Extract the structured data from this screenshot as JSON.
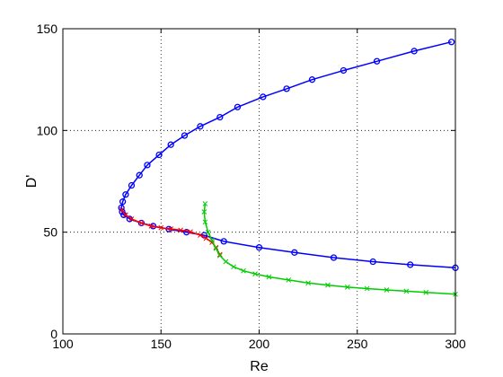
{
  "chart_data": {
    "type": "line",
    "title": "",
    "xlabel": "Re",
    "ylabel": "D'",
    "xlim": [
      100,
      300
    ],
    "ylim": [
      0,
      150
    ],
    "xticks": [
      100,
      150,
      200,
      250,
      300
    ],
    "yticks": [
      0,
      50,
      100,
      150
    ],
    "grid": true,
    "series": [
      {
        "color": "#0000ff",
        "marker": "circle",
        "x": [
          298,
          279,
          260,
          243,
          227,
          214,
          202,
          189,
          180,
          170,
          162,
          155,
          149,
          143,
          139,
          135,
          132,
          130.5,
          129.8,
          130.2,
          131,
          134,
          140,
          146,
          154,
          163,
          172,
          182,
          200,
          218,
          238,
          258,
          277,
          300
        ],
        "y": [
          143.5,
          139,
          134,
          129.5,
          125,
          120.5,
          116.5,
          111.5,
          106.5,
          102,
          97.5,
          93,
          88,
          83,
          78,
          73,
          68.5,
          65,
          62,
          60,
          58.5,
          56.5,
          54.5,
          53,
          51.5,
          50,
          48.5,
          45.5,
          42.5,
          40,
          37.5,
          35.5,
          34,
          32.5
        ]
      },
      {
        "color": "#ff0000",
        "marker": "x",
        "x": [
          130,
          132,
          135,
          140,
          145,
          150,
          155,
          160,
          165,
          170,
          173,
          176,
          178,
          180
        ],
        "y": [
          61,
          58.5,
          56.5,
          54.5,
          53,
          52.2,
          51.6,
          51,
          50.2,
          48.5,
          47,
          45,
          42.5,
          39
        ]
      },
      {
        "color": "#00cc00",
        "marker": "x",
        "x": [
          172.5,
          172,
          172.5,
          174,
          176,
          178,
          180,
          183,
          187,
          192,
          198,
          205,
          215,
          225,
          235,
          245,
          255,
          265,
          275,
          285,
          300
        ],
        "y": [
          64,
          60,
          55,
          50,
          46,
          42,
          38.5,
          35.5,
          33,
          31,
          29.5,
          28,
          26.5,
          25,
          24,
          23,
          22.3,
          21.6,
          21,
          20.4,
          19.5
        ]
      }
    ]
  }
}
